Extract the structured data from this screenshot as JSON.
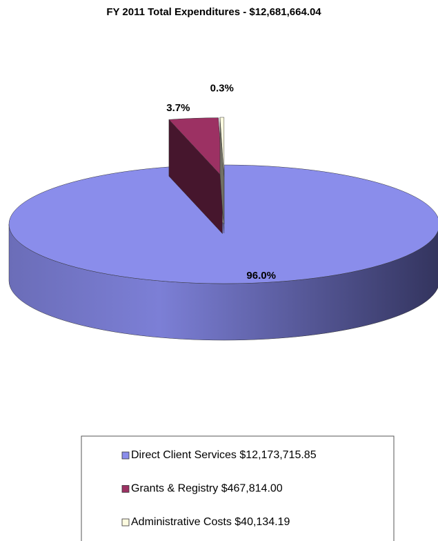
{
  "chart_data": {
    "type": "pie",
    "title": "FY 2011 Total Expenditures - $12,681,664.04",
    "categories": [
      "Direct Client Services $12,173,715.85",
      "Grants & Registry $467,814.00",
      "Administrative Costs $40,134.19"
    ],
    "values": [
      96.0,
      3.7,
      0.3
    ],
    "value_labels": [
      "96.0%",
      "3.7%",
      "0.3%"
    ],
    "colors": [
      "#8a8deb",
      "#9c3163",
      "#fdfbe0"
    ],
    "exploded": [
      false,
      true,
      true
    ]
  }
}
